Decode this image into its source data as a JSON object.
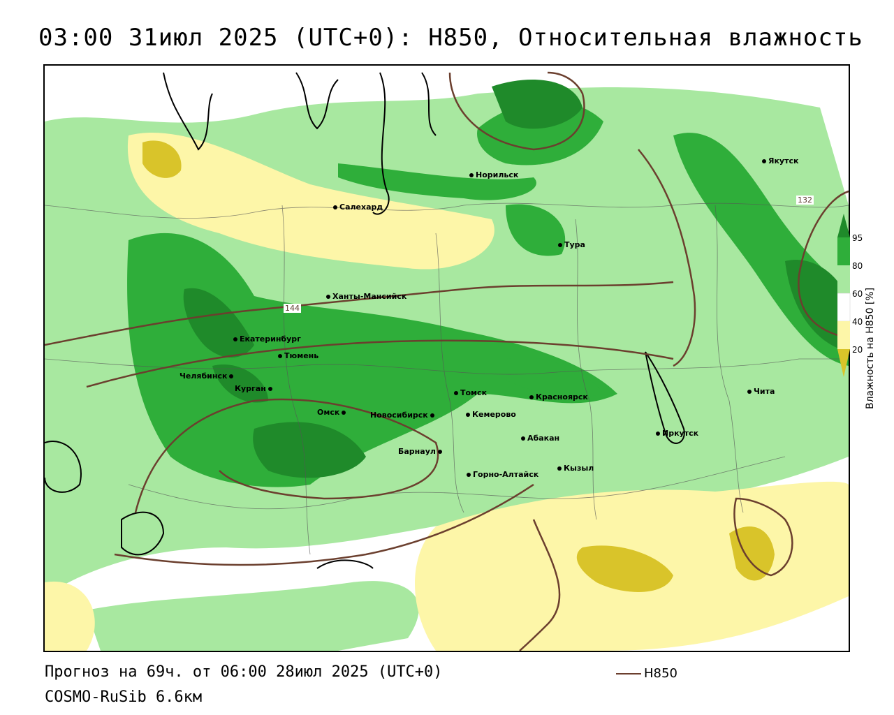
{
  "title": "03:00 31июл 2025 (UTC+0): H850, Относительная влажность",
  "footer": {
    "forecast": "Прогноз на 69ч. от 06:00 28июл 2025 (UTC+0)",
    "model": "COSMO-RuSib 6.6км"
  },
  "line_legend": {
    "label": "H850",
    "color": "#6b3f2e"
  },
  "contour_labels": [
    "144",
    "132"
  ],
  "colorbar": {
    "title": "Влажность на H850 [%]",
    "ticks": [
      "95",
      "80",
      "60",
      "40",
      "20"
    ],
    "colors": {
      "above_95": "#1f8a2a",
      "80_95": "#2fae3a",
      "60_80": "#a8e8a0",
      "40_60": "#ffffff",
      "20_40": "#fdf6a8",
      "below_20": "#d9c42a"
    }
  },
  "cities": [
    {
      "name": "Салехард"
    },
    {
      "name": "Норильск"
    },
    {
      "name": "Якутск"
    },
    {
      "name": "Тура"
    },
    {
      "name": "Ханты-Мансийск"
    },
    {
      "name": "Екатеринбург"
    },
    {
      "name": "Тюмень"
    },
    {
      "name": "Челябинск"
    },
    {
      "name": "Курган"
    },
    {
      "name": "Омск"
    },
    {
      "name": "Новосибирск"
    },
    {
      "name": "Томск"
    },
    {
      "name": "Кемерово"
    },
    {
      "name": "Красноярск"
    },
    {
      "name": "Абакан"
    },
    {
      "name": "Барнаул"
    },
    {
      "name": "Горно-Алтайск"
    },
    {
      "name": "Кызыл"
    },
    {
      "name": "Иркутск"
    },
    {
      "name": "Чита"
    }
  ]
}
